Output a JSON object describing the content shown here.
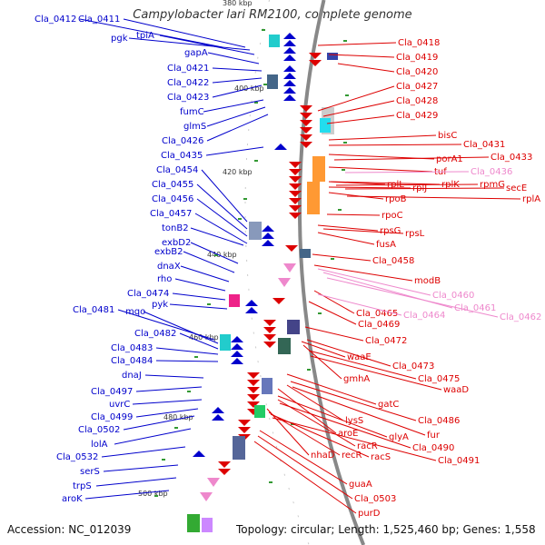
{
  "title": "Campylobacter lari RM2100, complete genome",
  "accession_text": "Accession: NC_012039",
  "topology_text": "Topology: circular; Length: 1,525,460 bp; Genes: 1,558",
  "colors": {
    "reverse_strand": "#0000cc",
    "forward_strand": "#dd0000",
    "rna": "#ee88cc",
    "backbone": "#888888"
  },
  "kbp_ticks": [
    "380 kbp",
    "400 kbp",
    "420 kbp",
    "440 kbp",
    "460 kbp",
    "480 kbp",
    "500 kbp"
  ],
  "left_labels": [
    "Cla_0412",
    "Cla_0411",
    "pgk",
    "tpiA",
    "gapA",
    "Cla_0421",
    "Cla_0422",
    "Cla_0423",
    "fumC",
    "glmS",
    "Cla_0426",
    "Cla_0435",
    "Cla_0454",
    "Cla_0455",
    "Cla_0456",
    "Cla_0457",
    "tonB2",
    "exbD2",
    "exbB2",
    "dnaX",
    "rho",
    "Cla_0474",
    "pyk",
    "Cla_0481",
    "mqo",
    "Cla_0482",
    "Cla_0483",
    "Cla_0484",
    "dnaJ",
    "Cla_0497",
    "uvrC",
    "Cla_0499",
    "Cla_0502",
    "lolA",
    "Cla_0532",
    "serS",
    "trpS",
    "aroK"
  ],
  "right_labels": [
    "Cla_0418",
    "Cla_0419",
    "Cla_0420",
    "Cla_0427",
    "Cla_0428",
    "Cla_0429",
    "bisC",
    "Cla_0431",
    "porA1",
    "Cla_0433",
    "tuf",
    "Cla_0436",
    "rplL",
    "rpmG",
    "secE",
    "rplJ",
    "rplK",
    "rplA",
    "rpoB",
    "rpoC",
    "rpsG",
    "rpsL",
    "fusA",
    "Cla_0458",
    "modB",
    "Cla_0460",
    "Cla_0461",
    "Cla_0462",
    "Cla_0465",
    "Cla_0464",
    "Cla_0469",
    "Cla_0472",
    "waaE",
    "Cla_0473",
    "gmhA",
    "Cla_0475",
    "waaD",
    "gatC",
    "lysS",
    "Cla_0486",
    "fur",
    "aroE",
    "glyA",
    "racR",
    "Cla_0490",
    "nhaD",
    "recR",
    "racS",
    "Cla_0491",
    "guaA",
    "Cla_0503",
    "purD"
  ]
}
